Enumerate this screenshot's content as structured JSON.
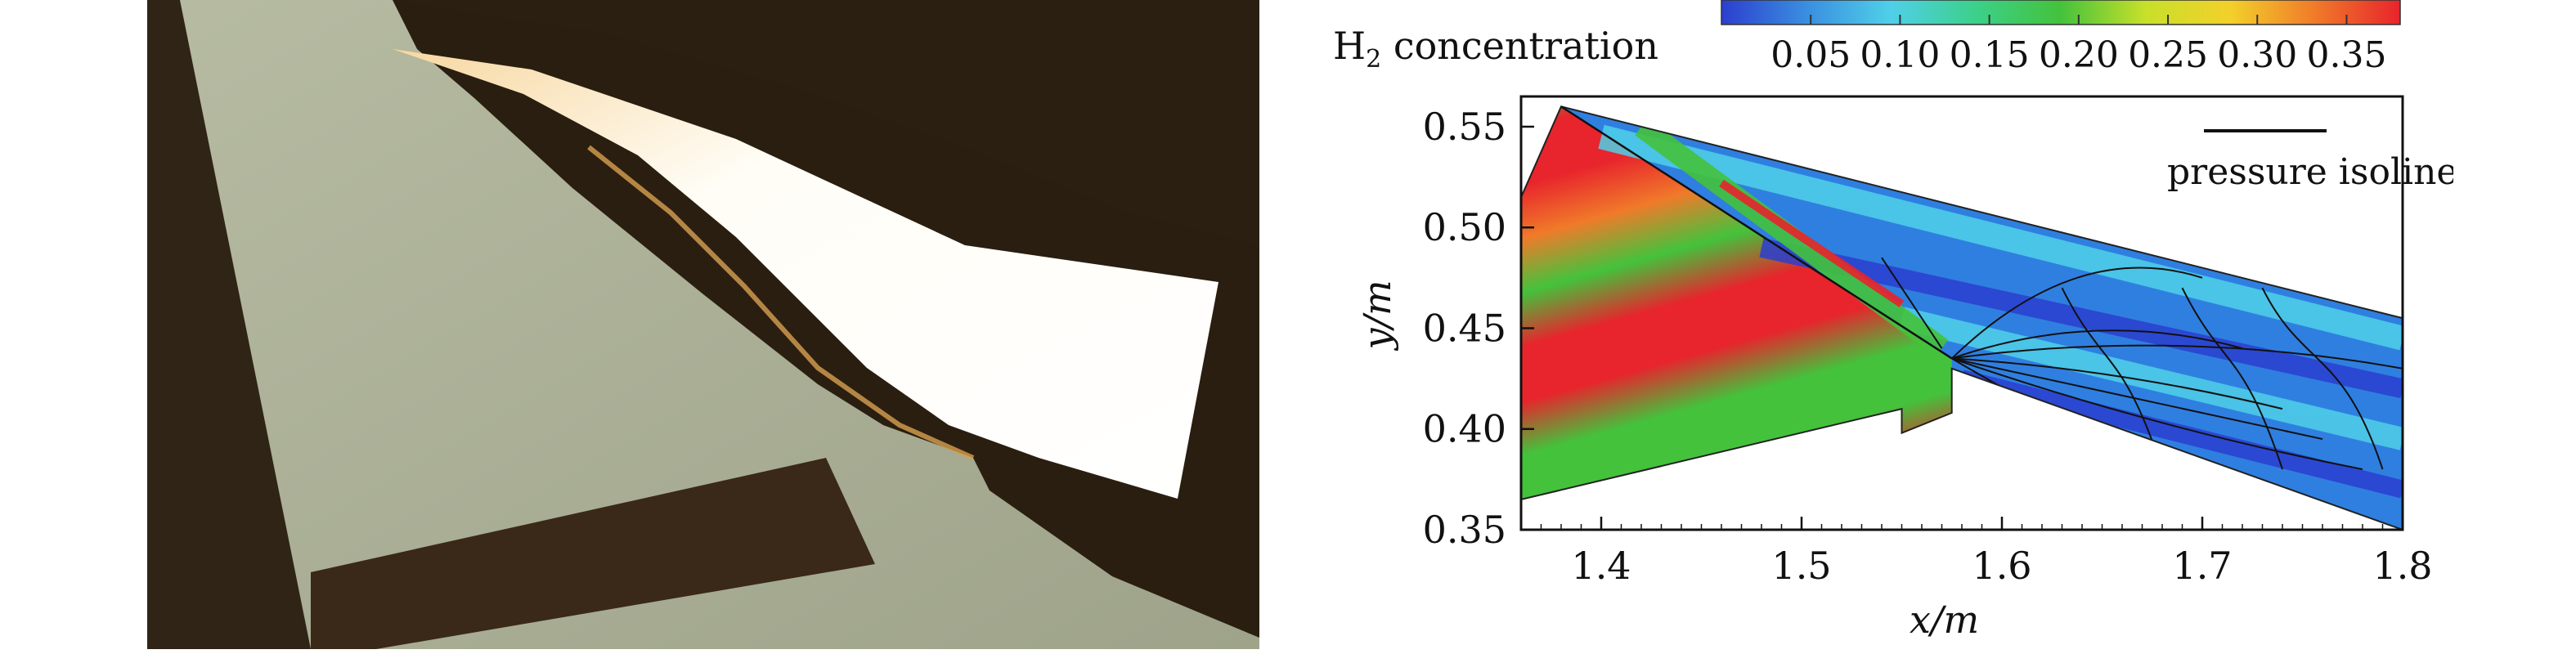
{
  "colorbar": {
    "label_main": "H",
    "label_sub": "2",
    "label_rest": " concentration",
    "ticks": [
      "0.05",
      "0.10",
      "0.15",
      "0.20",
      "0.25",
      "0.30",
      "0.35"
    ]
  },
  "legend": {
    "label": "pressure isolines"
  },
  "chart_data": {
    "type": "heatmap",
    "title": "",
    "xlabel": "x/m",
    "ylabel": "y/m",
    "xlim": [
      1.36,
      1.8
    ],
    "ylim": [
      0.35,
      0.565
    ],
    "xticks": [
      "1.4",
      "1.5",
      "1.6",
      "1.7",
      "1.8"
    ],
    "yticks": [
      "0.35",
      "0.40",
      "0.45",
      "0.50",
      "0.55"
    ],
    "xtick_values": [
      1.4,
      1.5,
      1.6,
      1.7,
      1.8
    ],
    "ytick_values": [
      0.35,
      0.4,
      0.45,
      0.5,
      0.55
    ],
    "colorscale": {
      "range": [
        0.0,
        0.38
      ],
      "colors": [
        "#2b3fcf",
        "#3a8ee0",
        "#4fd0e8",
        "#3cd08a",
        "#44c23c",
        "#c8e02a",
        "#f3d02a",
        "#f07a2a",
        "#e8242c"
      ]
    },
    "domain": {
      "top_wall": [
        [
          1.38,
          0.56
        ],
        [
          1.8,
          0.455
        ]
      ],
      "injector_wall": [
        [
          1.36,
          0.515
        ],
        [
          1.38,
          0.56
        ]
      ],
      "bottom_wall": [
        [
          1.36,
          0.365
        ],
        [
          1.55,
          0.41
        ],
        [
          1.575,
          0.43
        ],
        [
          1.8,
          0.35
        ]
      ],
      "step": [
        [
          1.55,
          0.398
        ],
        [
          1.575,
          0.408
        ]
      ]
    },
    "shock_line": [
      [
        1.38,
        0.56
      ],
      [
        1.575,
        0.435
      ]
    ],
    "series": [
      {
        "name": "pressure isolines",
        "type": "contour"
      }
    ]
  }
}
